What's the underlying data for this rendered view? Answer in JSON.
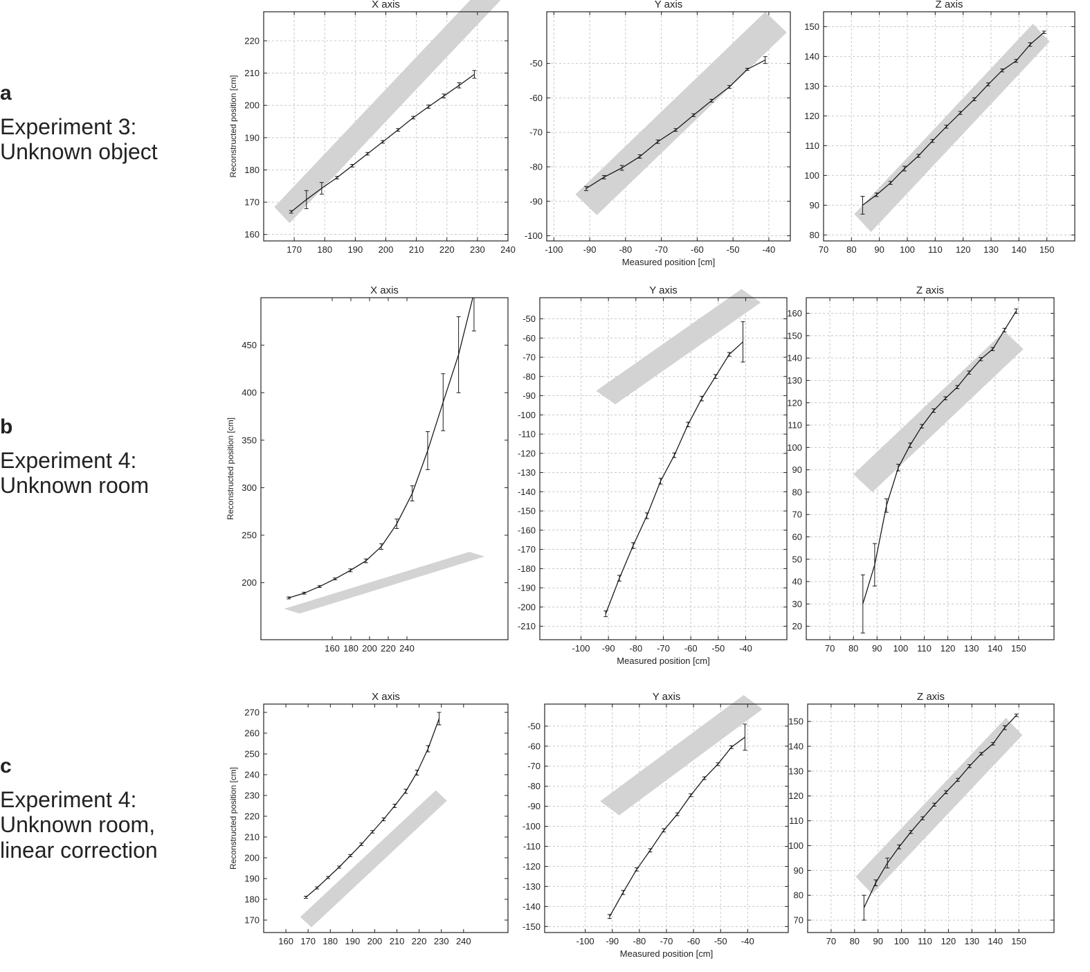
{
  "rows": [
    {
      "letter": "a",
      "description": "Experiment 3:\nUnknown object"
    },
    {
      "letter": "b",
      "description": "Experiment 4:\nUnknown room"
    },
    {
      "letter": "c",
      "description": "Experiment 4:\nUnknown room,\nlinear correction"
    }
  ],
  "colors": {
    "line": "#1a1a1a",
    "band": "#d3d3d3",
    "grid": "#c8c8c8",
    "axis": "#222222"
  },
  "chart_data": [
    {
      "type": "line",
      "row": "a",
      "title": "X axis",
      "ylabel": "Reconstructed position [cm]",
      "xlabel": "",
      "xlim": [
        160,
        240
      ],
      "ylim": [
        158,
        229
      ],
      "xticks": [
        170,
        180,
        190,
        200,
        210,
        220,
        230,
        240
      ],
      "yticks": [
        160,
        170,
        180,
        190,
        200,
        210,
        220
      ],
      "grid": true,
      "band": {
        "x": [
          166,
          235
        ],
        "y": [
          166,
          235
        ],
        "halfwidth": 2.5
      },
      "series": [
        {
          "x": [
            169,
            174,
            179,
            184,
            189,
            194,
            199,
            204,
            209,
            214,
            219,
            224,
            229
          ],
          "y": [
            167.0,
            170.8,
            174.3,
            177.6,
            181.3,
            185.0,
            188.7,
            192.4,
            196.2,
            199.6,
            202.9,
            206.2,
            209.6
          ],
          "err": [
            0.4,
            2.8,
            1.8,
            0.4,
            0.4,
            0.4,
            0.4,
            0.4,
            0.4,
            0.5,
            0.6,
            0.8,
            1.2
          ]
        }
      ]
    },
    {
      "type": "line",
      "row": "a",
      "title": "Y axis",
      "ylabel": "",
      "xlabel": "Measured position [cm]",
      "xlim": [
        -102,
        -34
      ],
      "ylim": [
        -101.5,
        -35
      ],
      "xticks": [
        -100,
        -90,
        -80,
        -70,
        -60,
        -50,
        -40
      ],
      "yticks": [
        -100,
        -90,
        -80,
        -70,
        -60,
        -50
      ],
      "grid": true,
      "band": {
        "x": [
          -91,
          -38
        ],
        "y": [
          -91,
          -38
        ],
        "halfwidth": 3
      },
      "series": [
        {
          "x": [
            -91,
            -86,
            -81,
            -76,
            -71,
            -66,
            -61,
            -56,
            -51,
            -46,
            -41
          ],
          "y": [
            -86.3,
            -83.0,
            -80.3,
            -77.0,
            -72.7,
            -69.3,
            -65.0,
            -60.8,
            -56.8,
            -51.7,
            -49.0
          ],
          "err": [
            0.6,
            0.5,
            0.7,
            0.5,
            0.5,
            0.4,
            0.4,
            0.4,
            0.4,
            0.3,
            1.0
          ]
        }
      ]
    },
    {
      "type": "line",
      "row": "a",
      "title": "Z axis",
      "ylabel": "",
      "xlabel": "",
      "xlim": [
        70,
        160
      ],
      "ylim": [
        78,
        155
      ],
      "xticks": [
        70,
        80,
        90,
        100,
        110,
        120,
        130,
        140,
        150
      ],
      "yticks": [
        80,
        90,
        100,
        110,
        120,
        130,
        140,
        150
      ],
      "grid": true,
      "band": {
        "x": [
          84,
          148
        ],
        "y": [
          84,
          148
        ],
        "halfwidth": 3
      },
      "series": [
        {
          "x": [
            84,
            89,
            94,
            99,
            104,
            109,
            114,
            119,
            124,
            129,
            134,
            139,
            144,
            149
          ],
          "y": [
            90.0,
            93.5,
            97.5,
            102.3,
            106.6,
            111.6,
            116.4,
            121.0,
            125.6,
            130.6,
            135.3,
            138.5,
            144.0,
            148.1
          ],
          "err": [
            3.0,
            0.6,
            0.5,
            0.8,
            0.5,
            0.5,
            0.5,
            0.5,
            0.5,
            0.5,
            0.5,
            0.5,
            0.6,
            0.4
          ]
        }
      ]
    },
    {
      "type": "line",
      "row": "b",
      "title": "X axis",
      "ylabel": "Reconstructed position [cm]",
      "xlabel": "",
      "xlim": [
        160,
        240
      ],
      "ylim": [
        140,
        500
      ],
      "xticks": [
        160,
        180,
        200,
        220,
        240
      ],
      "xtick_labels": [
        "160",
        "180",
        "200",
        "220",
        "240"
      ],
      "xticks_compressed": true,
      "yticks": [
        200,
        250,
        300,
        350,
        400,
        450
      ],
      "grid": false,
      "band": {
        "x": [
          170,
          230
        ],
        "y": [
          170,
          230
        ],
        "halfwidth": 2.5
      },
      "series": [
        {
          "x": [
            169,
            174,
            179,
            184,
            189,
            194,
            199,
            204,
            209,
            214,
            219,
            224,
            229
          ],
          "y": [
            184,
            189,
            196,
            204,
            213,
            223,
            238,
            262,
            294,
            339,
            390,
            440,
            505
          ],
          "err": [
            1,
            1,
            1,
            1,
            1.5,
            2,
            3,
            5,
            8,
            20,
            30,
            40,
            40
          ]
        }
      ]
    },
    {
      "type": "line",
      "row": "b",
      "title": "Y axis",
      "ylabel": "",
      "xlabel": "Measured position [cm]",
      "xlim": [
        -115,
        -25
      ],
      "ylim": [
        -217,
        -39
      ],
      "xticks": [
        -100,
        -90,
        -80,
        -70,
        -60,
        -50,
        -40
      ],
      "yticks": [
        -210,
        -200,
        -190,
        -180,
        -170,
        -160,
        -150,
        -140,
        -130,
        -120,
        -110,
        -100,
        -90,
        -80,
        -70,
        -60,
        -50
      ],
      "grid": true,
      "band": {
        "x": [
          -91,
          -38
        ],
        "y": [
          -91,
          -38
        ],
        "halfwidth": 3.5
      },
      "series": [
        {
          "x": [
            -91,
            -86,
            -81,
            -76,
            -71,
            -66,
            -61,
            -56,
            -51,
            -46,
            -41
          ],
          "y": [
            -203.5,
            -185,
            -168,
            -152.5,
            -134.5,
            -121,
            -105,
            -91.5,
            -80,
            -68.5,
            -62
          ],
          "err": [
            1.5,
            1.5,
            1.5,
            1.5,
            1.5,
            1.2,
            1.2,
            1.2,
            1.0,
            1.0,
            10.5
          ]
        }
      ]
    },
    {
      "type": "line",
      "row": "b",
      "title": "Z axis",
      "ylabel": "",
      "xlabel": "",
      "xlim": [
        60,
        165
      ],
      "ylim": [
        14,
        167
      ],
      "xticks": [
        70,
        80,
        90,
        100,
        110,
        120,
        130,
        140,
        150
      ],
      "yticks": [
        20,
        30,
        40,
        50,
        60,
        70,
        80,
        90,
        100,
        110,
        120,
        130,
        140,
        150,
        160
      ],
      "grid": true,
      "band": {
        "x": [
          84,
          148
        ],
        "y": [
          84,
          148
        ],
        "halfwidth": 4
      },
      "series": [
        {
          "x": [
            84,
            89,
            94,
            99,
            104,
            109,
            114,
            119,
            124,
            129,
            134,
            139,
            144,
            149
          ],
          "y": [
            30,
            47.5,
            74,
            91,
            101,
            109.5,
            116.5,
            122,
            127,
            133.5,
            139.5,
            144,
            152.5,
            161
          ],
          "err": [
            13,
            9.5,
            3,
            1.5,
            1,
            0.8,
            0.8,
            0.7,
            0.7,
            0.7,
            0.7,
            0.7,
            0.8,
            1
          ]
        }
      ]
    },
    {
      "type": "line",
      "row": "c",
      "title": "X axis",
      "ylabel": "Reconstructed position [cm]",
      "xlabel": "",
      "xlim": [
        150,
        260
      ],
      "ylim": [
        164,
        274
      ],
      "xticks": [
        160,
        170,
        180,
        190,
        200,
        210,
        220,
        230,
        240
      ],
      "yticks": [
        170,
        180,
        190,
        200,
        210,
        220,
        230,
        240,
        250,
        260,
        270
      ],
      "grid": false,
      "band": {
        "x": [
          169,
          230
        ],
        "y": [
          169,
          230
        ],
        "halfwidth": 2.5
      },
      "series": [
        {
          "x": [
            169,
            174,
            179,
            184,
            189,
            194,
            199,
            204,
            209,
            214,
            219,
            224,
            229
          ],
          "y": [
            181,
            185.5,
            190.5,
            195.5,
            201,
            206.5,
            212.5,
            218.5,
            225,
            232,
            241,
            252.5,
            267
          ],
          "err": [
            0.5,
            0.5,
            0.5,
            0.5,
            0.5,
            0.6,
            0.6,
            0.7,
            0.8,
            1.0,
            1.2,
            1.5,
            3
          ]
        }
      ]
    },
    {
      "type": "line",
      "row": "c",
      "title": "Y axis",
      "ylabel": "",
      "xlabel": "Measured position [cm]",
      "xlim": [
        -115,
        -25
      ],
      "ylim": [
        -153,
        -39
      ],
      "xticks": [
        -100,
        -90,
        -80,
        -70,
        -60,
        -50,
        -40
      ],
      "yticks": [
        -150,
        -140,
        -130,
        -120,
        -110,
        -100,
        -90,
        -80,
        -70,
        -60,
        -50
      ],
      "grid": true,
      "band": {
        "x": [
          -91,
          -38
        ],
        "y": [
          -91,
          -38
        ],
        "halfwidth": 3.5
      },
      "series": [
        {
          "x": [
            -91,
            -86,
            -81,
            -76,
            -71,
            -66,
            -61,
            -56,
            -51,
            -46,
            -41
          ],
          "y": [
            -145,
            -133,
            -121.5,
            -112,
            -102,
            -94,
            -84.5,
            -76,
            -69,
            -60.5,
            -55.5
          ],
          "err": [
            1,
            1,
            0.8,
            0.8,
            0.8,
            0.7,
            0.7,
            0.7,
            0.7,
            0.7,
            6.5
          ]
        }
      ]
    },
    {
      "type": "line",
      "row": "c",
      "title": "Z axis",
      "ylabel": "",
      "xlabel": "",
      "xlim": [
        60,
        165
      ],
      "ylim": [
        65,
        157
      ],
      "xticks": [
        70,
        80,
        90,
        100,
        110,
        120,
        130,
        140,
        150
      ],
      "yticks": [
        70,
        80,
        90,
        100,
        110,
        120,
        130,
        140,
        150
      ],
      "grid": true,
      "band": {
        "x": [
          84,
          148
        ],
        "y": [
          84,
          148
        ],
        "halfwidth": 3.5
      },
      "series": [
        {
          "x": [
            84,
            89,
            94,
            99,
            104,
            109,
            114,
            119,
            124,
            129,
            134,
            139,
            144,
            149
          ],
          "y": [
            75,
            85,
            93,
            99.5,
            105.5,
            111,
            116.5,
            121.5,
            126.5,
            132,
            137,
            141,
            147.5,
            152.5
          ],
          "err": [
            5,
            1.2,
            2,
            0.8,
            0.6,
            0.6,
            0.6,
            0.6,
            0.6,
            0.6,
            0.5,
            0.5,
            0.8,
            0.5
          ]
        }
      ]
    }
  ]
}
